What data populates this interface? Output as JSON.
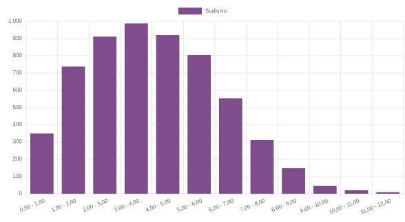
{
  "chart_data": {
    "type": "bar",
    "categories": [
      "0,00 - 1,00",
      "1,00 - 2,00",
      "2,00 - 3,00",
      "3,00 - 4,00",
      "4,00 - 5,00",
      "5,00 - 6,00",
      "6,00 - 7,00",
      "7,00 - 8,00",
      "8,00 - 9,00",
      "9,00 - 10,00",
      "10,00 - 11,00",
      "11,00 - 12,00"
    ],
    "series": [
      {
        "name": "Sudionici",
        "color": "#7f4d8e",
        "values": [
          350,
          738,
          912,
          988,
          920,
          804,
          554,
          312,
          148,
          45,
          20,
          9
        ]
      }
    ],
    "ylim": [
      0,
      1000
    ],
    "yticks": [
      0,
      100,
      200,
      300,
      400,
      500,
      600,
      700,
      800,
      900,
      {
        "value": 1000,
        "label": "1,000"
      }
    ],
    "grid": true,
    "legend": "top"
  }
}
